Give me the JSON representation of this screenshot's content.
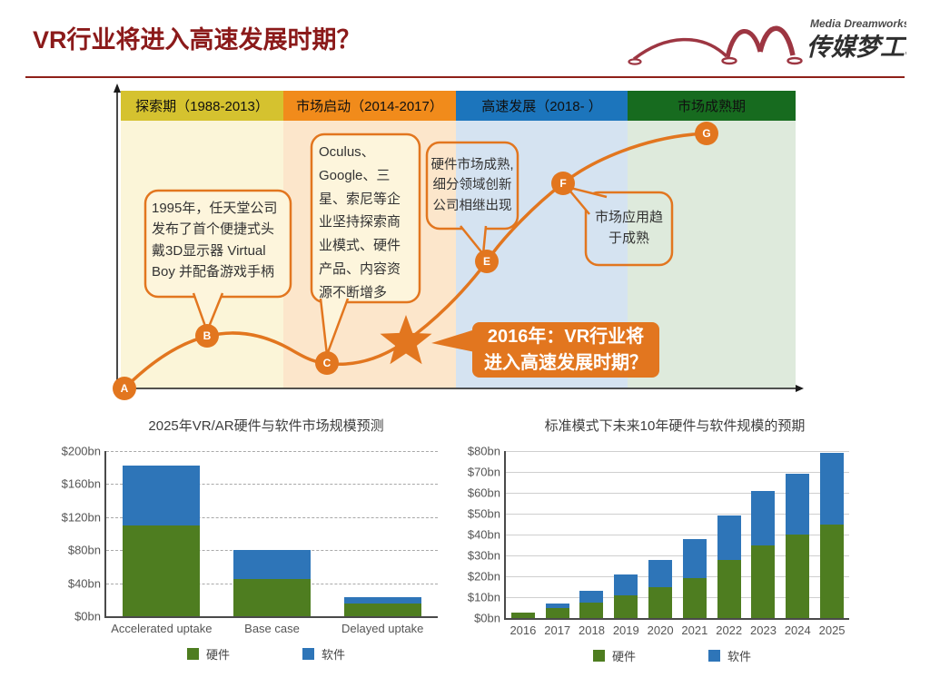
{
  "slide": {
    "title": "VR行业将进入高速发展时期？",
    "logo": {
      "name": "传媒梦工场",
      "subtitle": "Media Dreamworks",
      "mark_color": "#9D3642"
    }
  },
  "timeline": {
    "accent_color": "#E2761F",
    "phases": [
      {
        "label": "探索期（1988-2013）",
        "header_color": "#D5C22F",
        "band_color": "#FBF5D8"
      },
      {
        "label": "市场启动（2014-2017）",
        "header_color": "#F18B1B",
        "band_color": "#FCE6CB"
      },
      {
        "label": "高速发展（2018- ）",
        "header_color": "#1C75BC",
        "band_color": "#D5E3F1"
      },
      {
        "label": "市场成熟期",
        "header_color": "#176B1F",
        "band_color": "#DEEADC"
      }
    ],
    "points": [
      {
        "label": "A"
      },
      {
        "label": "B"
      },
      {
        "label": "C"
      },
      {
        "label": "E"
      },
      {
        "label": "F"
      },
      {
        "label": "G"
      }
    ],
    "callouts": [
      {
        "text": "1995年，任天堂公司发布了首个便捷式头戴3D显示器 Virtual Boy 并配备游戏手柄"
      },
      {
        "text": "Oculus、Google、三星、索尼等企业坚持探索商业模式、硬件产品、内容资源不断增多"
      },
      {
        "text": "硬件市场成熟,细分领域创新公司相继出现"
      },
      {
        "text": "市场应用趋于成熟"
      }
    ],
    "highlight": {
      "line1": "2016年：VR行业将",
      "line2": "进入高速发展时期？"
    }
  },
  "chart_data": [
    {
      "type": "bar",
      "stacked": true,
      "title": "2025年VR/AR硬件与软件市场规模预测",
      "categories": [
        "Accelerated uptake",
        "Base case",
        "Delayed uptake"
      ],
      "series": [
        {
          "name": "硬件",
          "color": "#4E7D20",
          "values": [
            110,
            45,
            15
          ]
        },
        {
          "name": "软件",
          "color": "#2E75B8",
          "values": [
            72,
            35,
            8
          ]
        }
      ],
      "ylim": [
        0,
        200
      ],
      "ystep": 40,
      "yticks": [
        "$0bn",
        "$40bn",
        "$80bn",
        "$120bn",
        "$160bn",
        "$200bn"
      ],
      "grid": "dashed",
      "legend_position": "bottom"
    },
    {
      "type": "bar",
      "stacked": true,
      "title": "标准模式下未来10年硬件与软件规模的预期",
      "categories": [
        "2016",
        "2017",
        "2018",
        "2019",
        "2020",
        "2021",
        "2022",
        "2023",
        "2024",
        "2025"
      ],
      "series": [
        {
          "name": "硬件",
          "color": "#4E7D20",
          "values": [
            2.8,
            5,
            7.5,
            11,
            15,
            19,
            28,
            35,
            40,
            45
          ]
        },
        {
          "name": "软件",
          "color": "#2E75B8",
          "values": [
            0,
            2,
            5.5,
            10,
            13,
            19,
            21,
            26,
            29,
            34
          ]
        }
      ],
      "ylim": [
        0,
        80
      ],
      "ystep": 10,
      "yticks": [
        "$0bn",
        "$10bn",
        "$20bn",
        "$30bn",
        "$40bn",
        "$50bn",
        "$60bn",
        "$70bn",
        "$80bn"
      ],
      "grid": "solid",
      "legend_position": "bottom"
    }
  ]
}
